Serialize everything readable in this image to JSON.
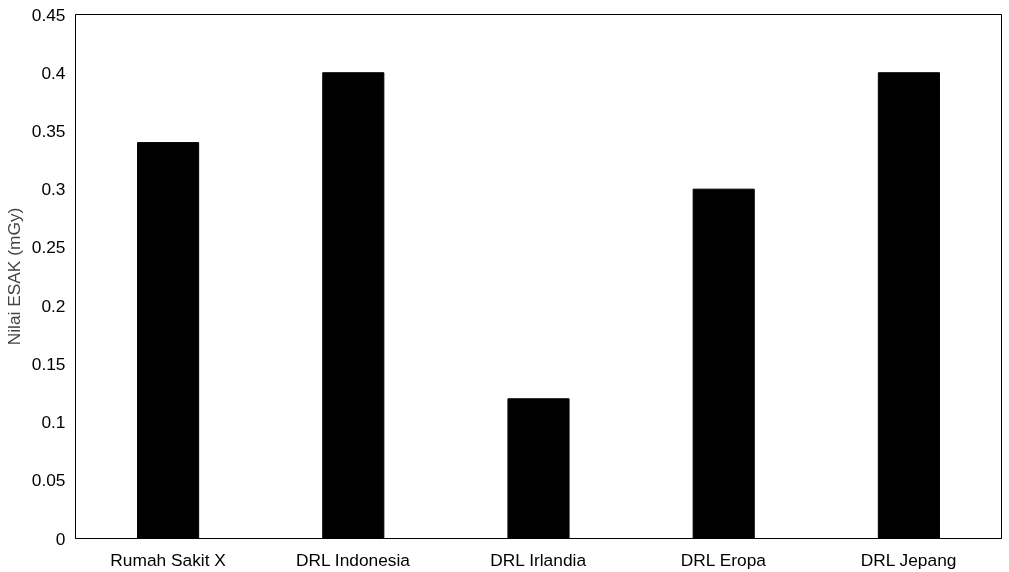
{
  "chart_data": {
    "type": "bar",
    "ylabel": "Nilai ESAK (mGy)",
    "categories": [
      "Rumah Sakit X",
      "DRL Indonesia",
      "DRL Irlandia",
      "DRL Eropa",
      "DRL Jepang"
    ],
    "values": [
      0.34,
      0.4,
      0.12,
      0.3,
      0.4
    ],
    "color": "#000000",
    "ylim": [
      0,
      0.45
    ],
    "yticks": [
      0,
      0.05,
      0.1,
      0.15,
      0.2,
      0.25,
      0.3,
      0.35,
      0.4,
      0.45
    ],
    "grid": false
  }
}
